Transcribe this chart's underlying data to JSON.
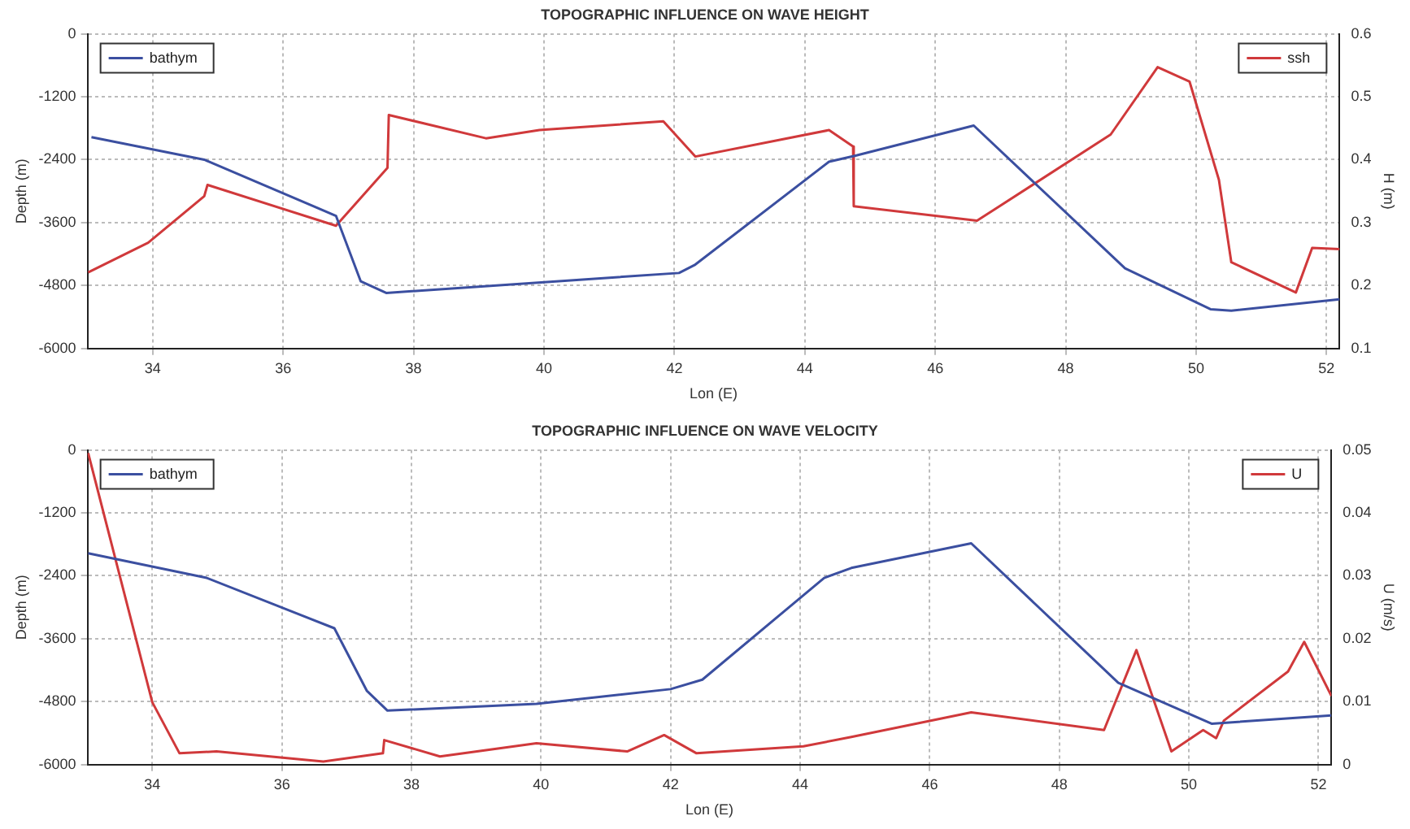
{
  "chart_data": [
    {
      "type": "line",
      "title": "TOPOGRAPHIC INFLUENCE ON WAVE HEIGHT",
      "xlabel": "Lon (E)",
      "ylabel": "Depth (m)",
      "y2label": "H (m)",
      "xlim": [
        33,
        52.2
      ],
      "xticks": [
        34,
        36,
        38,
        40,
        42,
        44,
        46,
        48,
        50,
        52
      ],
      "ylim": [
        -6000,
        0
      ],
      "yticks": [
        -6000,
        -4800,
        -3600,
        -2400,
        -1200,
        0
      ],
      "y2lim": [
        0.1,
        0.6
      ],
      "y2ticks": [
        0.1,
        0.2,
        0.3,
        0.4,
        0.5,
        0.6
      ],
      "grid": true,
      "legend": "top",
      "series": [
        {
          "name": "bathym",
          "color": "#3b4fa0",
          "x": [
            33.06,
            34.79,
            36.81,
            37.19,
            37.58,
            42.07,
            42.32,
            44.37,
            44.79,
            46.59,
            48.91,
            50.22,
            50.54,
            52.2
          ],
          "values": [
            -1970,
            -2400,
            -3470,
            -4720,
            -4940,
            -4560,
            -4400,
            -2440,
            -2320,
            -1750,
            -4470,
            -5250,
            -5280,
            -5060
          ]
        },
        {
          "name": "ssh",
          "color": "#d0393b",
          "axis": "y2",
          "x": [
            33.01,
            33.93,
            34.79,
            34.84,
            36.81,
            37.6,
            37.62,
            39.11,
            39.93,
            41.83,
            42.32,
            44.37,
            44.74,
            44.75,
            46.64,
            48.69,
            49.41,
            49.9,
            50.35,
            50.54,
            51.53,
            51.78,
            52.2
          ],
          "values": [
            0.221,
            0.268,
            0.342,
            0.36,
            0.295,
            0.387,
            0.471,
            0.434,
            0.447,
            0.461,
            0.405,
            0.447,
            0.421,
            0.326,
            0.303,
            0.44,
            0.547,
            0.524,
            0.368,
            0.237,
            0.189,
            0.26,
            0.258
          ]
        }
      ]
    },
    {
      "type": "line",
      "title": "TOPOGRAPHIC INFLUENCE ON WAVE VELOCITY",
      "xlabel": "Lon (E)",
      "ylabel": "Depth (m)",
      "y2label": "U (m/s)",
      "xlim": [
        33,
        52.2
      ],
      "xticks": [
        34,
        36,
        38,
        40,
        42,
        44,
        46,
        48,
        50,
        52
      ],
      "ylim": [
        -6000,
        0
      ],
      "yticks": [
        -6000,
        -4800,
        -3600,
        -2400,
        -1200,
        0
      ],
      "y2lim": [
        0,
        0.05
      ],
      "y2ticks": [
        0,
        0.01,
        0.02,
        0.03,
        0.04,
        0.05
      ],
      "grid": true,
      "legend": "top",
      "series": [
        {
          "name": "bathym",
          "color": "#3b4fa0",
          "x": [
            33.01,
            34.84,
            36.81,
            37.31,
            37.63,
            39.93,
            42.0,
            42.49,
            44.37,
            44.79,
            46.64,
            48.91,
            50.35,
            52.2
          ],
          "values": [
            -1970,
            -2440,
            -3400,
            -4590,
            -4970,
            -4840,
            -4560,
            -4380,
            -2440,
            -2250,
            -1780,
            -4440,
            -5220,
            -5060
          ]
        },
        {
          "name": "U",
          "color": "#d0393b",
          "axis": "y2",
          "x": [
            33.01,
            34.0,
            34.42,
            34.99,
            36.64,
            37.56,
            37.58,
            38.44,
            39.93,
            41.33,
            41.9,
            42.4,
            44.05,
            44.79,
            46.64,
            48.69,
            49.19,
            49.73,
            50.22,
            50.42,
            50.54,
            51.53,
            51.78,
            52.2
          ],
          "values": [
            0.0495,
            0.0099,
            0.0018,
            0.0021,
            0.0005,
            0.0018,
            0.0039,
            0.0013,
            0.0034,
            0.0021,
            0.0047,
            0.0018,
            0.0029,
            0.0044,
            0.0083,
            0.0055,
            0.0182,
            0.0021,
            0.0055,
            0.0042,
            0.007,
            0.0148,
            0.0195,
            0.0109
          ]
        }
      ]
    }
  ]
}
